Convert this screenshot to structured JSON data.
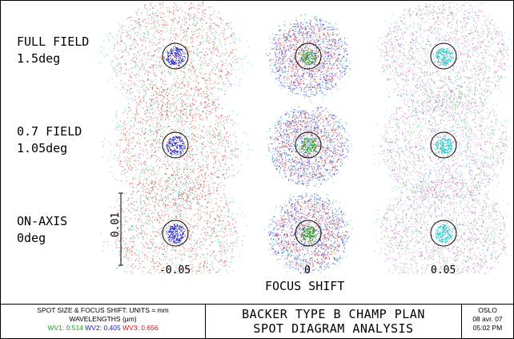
{
  "rows": [
    {
      "line1": "FULL FIELD",
      "line2": "1.5deg"
    },
    {
      "line1": "0.7 FIELD",
      "line2": "1.05deg"
    },
    {
      "line1": "ON-AXIS",
      "line2": "0deg"
    }
  ],
  "focus_shifts": [
    "-0.05",
    "0",
    "0.05"
  ],
  "focus_title": "FOCUS SHIFT",
  "scale_bar_label": "0.01",
  "footer": {
    "units_line": "SPOT SIZE & FOCUS SHIFT: UNITS = mm",
    "wavelengths_line": "WAVELENGTHS (µm)",
    "wavelengths": [
      {
        "label": "WV1:",
        "value": "0.514",
        "color": "#1f9a1f"
      },
      {
        "label": "WV2:",
        "value": "0.405",
        "color": "#1a1ac8"
      },
      {
        "label": "WV3:",
        "value": "0.656",
        "color": "#d01818"
      }
    ],
    "title_line1": "BACKER TYPE B CHAMP PLAN",
    "title_line2": "SPOT DIAGRAM ANALYSIS",
    "program": "OSLO",
    "date": "08 avr. 07",
    "time": "05:02 PM"
  },
  "colors": {
    "wv1": "#1f9a1f",
    "wv2": "#1a1ac8",
    "wv3": "#d01818",
    "cyan": "#22c8c8",
    "magenta": "#b02ab0"
  }
}
